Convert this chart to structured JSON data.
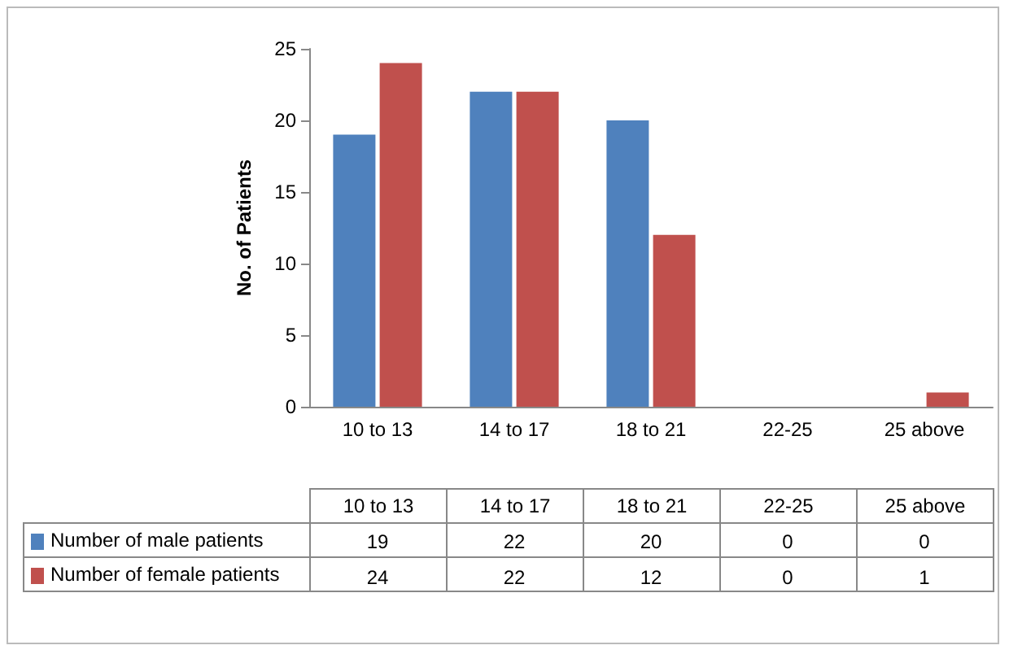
{
  "chart_data": {
    "type": "bar",
    "ylabel": "No. of Patients",
    "categories": [
      "10 to 13",
      "14 to 17",
      "18 to 21",
      "22-25",
      "25 above"
    ],
    "series": [
      {
        "name": "Number of male patients",
        "color": "#4f81bd",
        "values": [
          19,
          22,
          20,
          0,
          0
        ]
      },
      {
        "name": "Number of female patients",
        "color": "#c0504d",
        "values": [
          24,
          22,
          12,
          0,
          1
        ]
      }
    ],
    "ylim": [
      0,
      25
    ],
    "yticks": [
      0,
      5,
      10,
      15,
      20,
      25
    ],
    "grid": false,
    "legend": "bottom",
    "data_labels": true
  }
}
